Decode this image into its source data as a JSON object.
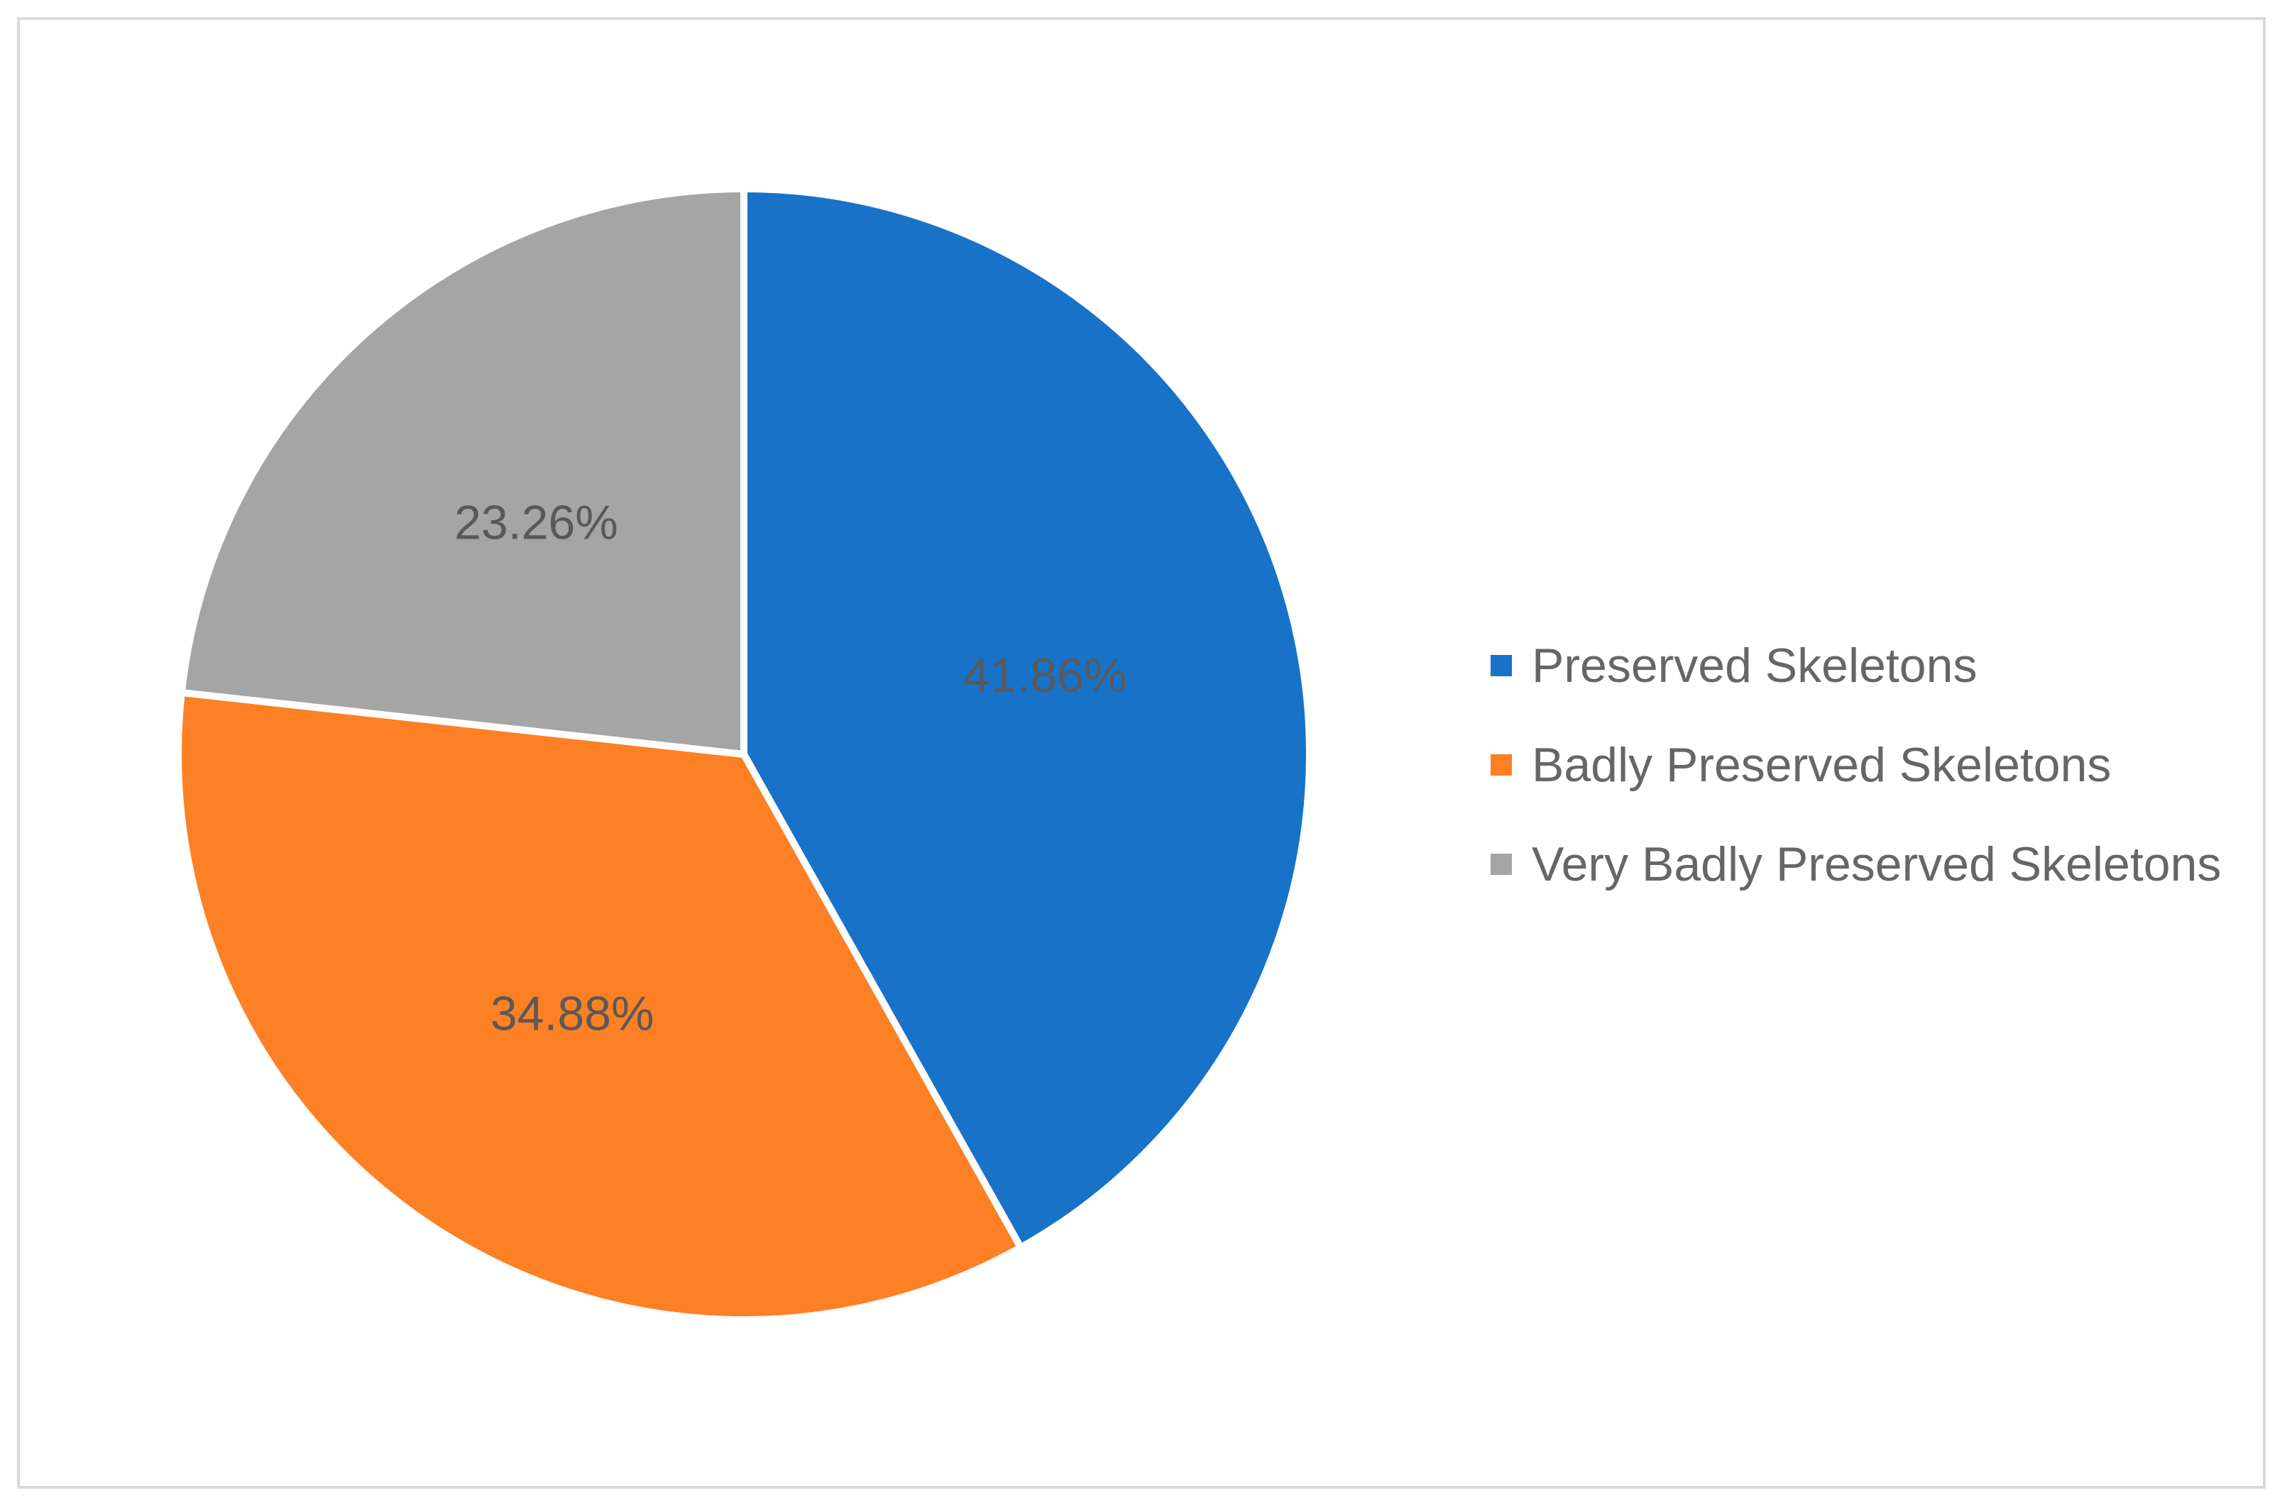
{
  "chart_data": {
    "type": "pie",
    "title": "",
    "slices": [
      {
        "name": "Preserved Skeletons",
        "value": 41.86,
        "label": "41.86%",
        "color": "#1872C8"
      },
      {
        "name": "Badly Preserved Skeletons",
        "value": 34.88,
        "label": "34.88%",
        "color": "#FD8025"
      },
      {
        "name": "Very Badly Preserved Skeletons",
        "value": 23.26,
        "label": "23.26%",
        "color": "#A5A5A5"
      }
    ],
    "start": "12 o'clock",
    "direction": "clockwise",
    "legend_placement": "right",
    "slice_border_color": "#FFFFFF"
  }
}
